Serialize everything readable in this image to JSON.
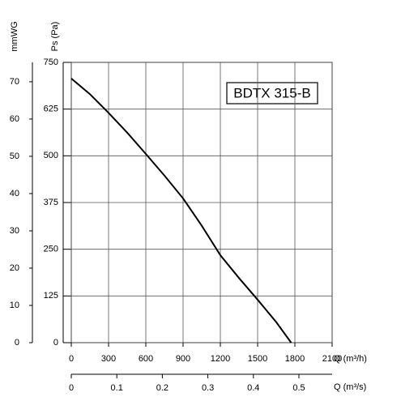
{
  "chart_data": {
    "type": "line",
    "annotation": "BDTX 315-B",
    "x_label": "Q (m³/h)",
    "x2_label": "Q (m³/s)",
    "y_label": "Ps (Pa)",
    "y2_label": "mmWG",
    "x": [
      0,
      150,
      300,
      450,
      600,
      750,
      900,
      1050,
      1200,
      1350,
      1500,
      1650,
      1770
    ],
    "series": [
      {
        "name": "BDTX 315-B",
        "color": "#000000",
        "values": [
          707,
          665,
          615,
          562,
          505,
          447,
          386,
          313,
          234,
          173,
          115,
          55,
          0
        ]
      }
    ],
    "xlim": [
      0,
      2100
    ],
    "xticks": [
      0,
      300,
      600,
      900,
      1200,
      1500,
      1800,
      2100
    ],
    "x2lim": [
      0,
      0.573
    ],
    "x2ticks": [
      0,
      0.1,
      0.2,
      0.3,
      0.4,
      0.5
    ],
    "ylim": [
      0,
      750
    ],
    "yticks": [
      0,
      125,
      250,
      375,
      500,
      625,
      750
    ],
    "y2lim": [
      0,
      75.2
    ],
    "y2ticks": [
      0,
      10,
      20,
      30,
      40,
      50,
      60,
      70
    ],
    "grid": true
  }
}
